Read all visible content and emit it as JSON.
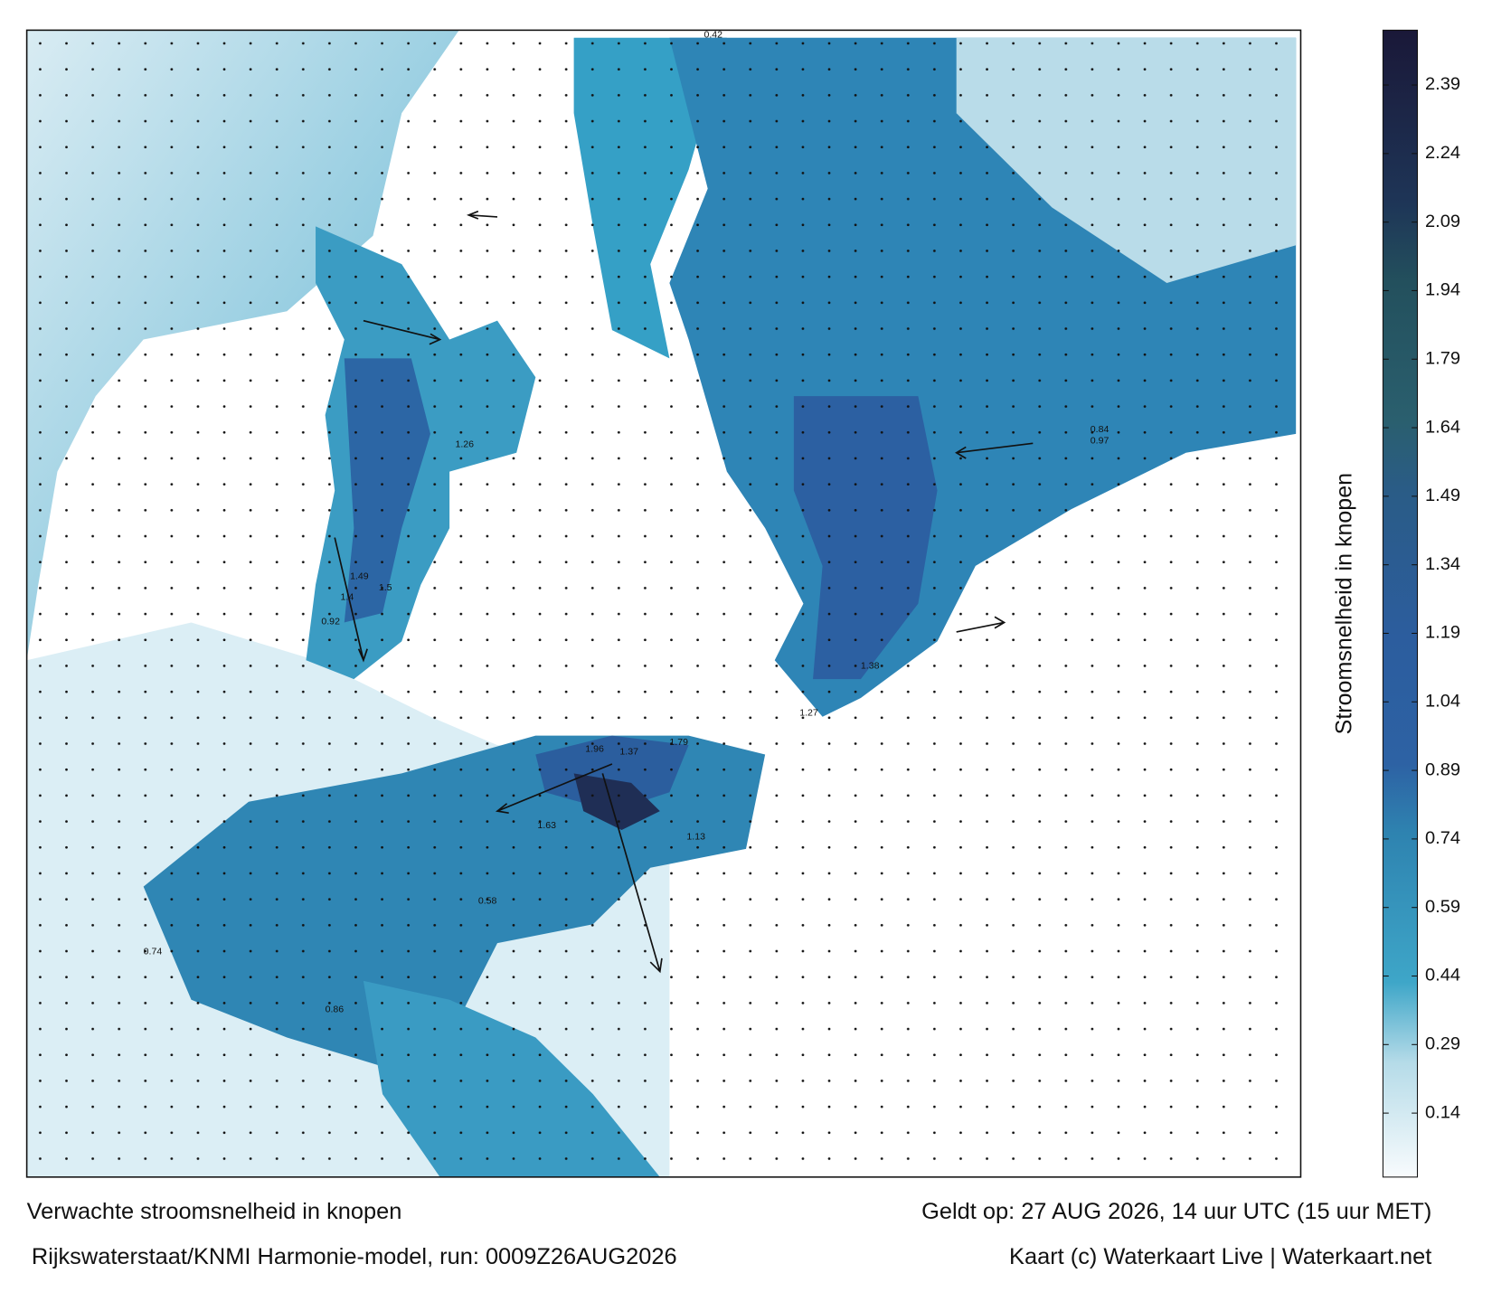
{
  "header": {
    "title": "Verwachte stroomsnelheid in knopen",
    "model": "Rijkswaterstaat/KNMI Harmonie-model, run: 0009Z26AUG2026",
    "valid": "Geldt op: 27 AUG 2026, 14 uur UTC (15 uur MET)",
    "credit": "Kaart (c) Waterkaart Live | Waterkaart.net"
  },
  "colorbar": {
    "label": "Stroomsnelheid in knopen",
    "lim": [
      0,
      2.51
    ],
    "ticks": [
      0.14,
      0.29,
      0.44,
      0.59,
      0.74,
      0.89,
      1.04,
      1.19,
      1.34,
      1.49,
      1.64,
      1.79,
      1.94,
      2.09,
      2.24,
      2.39
    ]
  },
  "map_labels": [
    "1.96",
    "1.37",
    "1.79",
    "1.49",
    "1.4",
    "1.5",
    "1.26",
    "1.13",
    "0.84",
    "0.97",
    "1.38",
    "1.27",
    "0.92",
    "1.63",
    "0.42",
    "0.58",
    "0.74",
    "0.86"
  ]
}
